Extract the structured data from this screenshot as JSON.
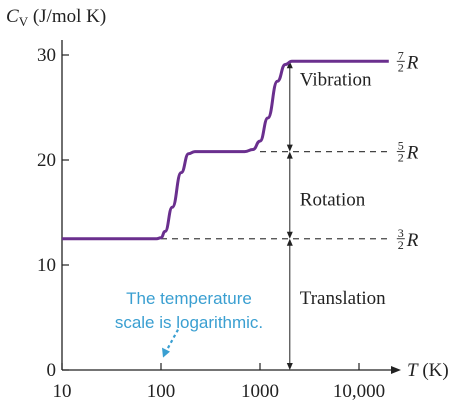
{
  "chart_data": {
    "type": "line",
    "xscale": "log",
    "xlim": [
      10,
      30000
    ],
    "ylim": [
      0,
      32
    ],
    "y_axis_title": {
      "symbol": "C",
      "subscript": "V",
      "unit": "(J/mol K)"
    },
    "x_axis_title": {
      "symbol": "T",
      "unit": "(K)"
    },
    "x_ticks": [
      {
        "value": 10,
        "label": "10"
      },
      {
        "value": 100,
        "label": "100"
      },
      {
        "value": 1000,
        "label": "1000"
      },
      {
        "value": 10000,
        "label": "10,000"
      }
    ],
    "y_ticks": [
      {
        "value": 0,
        "label": "0"
      },
      {
        "value": 10,
        "label": "10"
      },
      {
        "value": 20,
        "label": "20"
      },
      {
        "value": 30,
        "label": "30"
      }
    ],
    "series": [
      {
        "color": "#6a2f8e",
        "points": [
          [
            10,
            12.5
          ],
          [
            90,
            12.5
          ],
          [
            100,
            12.6
          ],
          [
            110,
            13.2
          ],
          [
            130,
            15.5
          ],
          [
            160,
            18.8
          ],
          [
            190,
            20.6
          ],
          [
            220,
            20.8
          ],
          [
            700,
            20.8
          ],
          [
            850,
            21.0
          ],
          [
            1000,
            21.8
          ],
          [
            1200,
            24.0
          ],
          [
            1500,
            27.5
          ],
          [
            1800,
            29.1
          ],
          [
            2100,
            29.4
          ],
          [
            20000,
            29.4
          ]
        ]
      }
    ],
    "levels": [
      {
        "value": 12.5,
        "x_start": 100,
        "x_end": 20000,
        "dashed": true,
        "label_num": "3",
        "label_den": "2",
        "label_symbol": "R"
      },
      {
        "value": 20.8,
        "x_start": 1000,
        "x_end": 20000,
        "dashed": true,
        "label_num": "5",
        "label_den": "2",
        "label_symbol": "R"
      },
      {
        "value": 29.4,
        "x_start": 20000,
        "x_end": 20000,
        "dashed": false,
        "label_num": "7",
        "label_den": "2",
        "label_symbol": "R"
      }
    ],
    "contribution_x": 2000,
    "bands": [
      {
        "label": "Vibration",
        "from": 20.8,
        "to": 29.4
      },
      {
        "label": "Rotation",
        "from": 12.5,
        "to": 20.8
      },
      {
        "label": "Translation",
        "from": 0,
        "to": 12.5
      }
    ],
    "annotation": {
      "lines": [
        "The temperature",
        "scale is logarithmic."
      ],
      "points_to": [
        100,
        0.8
      ],
      "color": "#3a9fd1"
    }
  }
}
